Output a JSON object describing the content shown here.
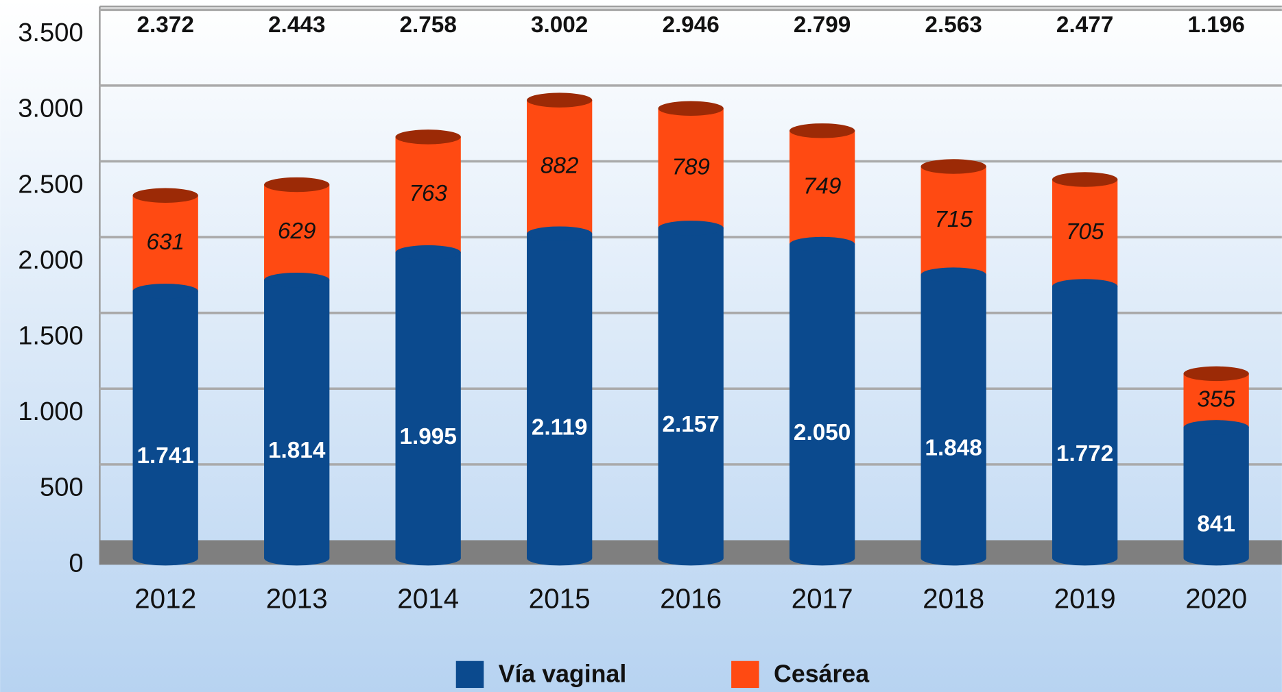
{
  "chart_data": {
    "type": "bar",
    "stacked": true,
    "categories": [
      "2012",
      "2013",
      "2014",
      "2015",
      "2016",
      "2017",
      "2018",
      "2019",
      "2020"
    ],
    "series": [
      {
        "name": "Vía vaginal",
        "color": "#0b4a8e",
        "values": [
          1741,
          1814,
          1995,
          2119,
          2157,
          2050,
          1848,
          1772,
          841
        ],
        "value_labels": [
          "1.741",
          "1.814",
          "1.995",
          "2.119",
          "2.157",
          "2.050",
          "1.848",
          "1.772",
          "841"
        ]
      },
      {
        "name": "Cesárea",
        "color": "#ff4a12",
        "values": [
          631,
          629,
          763,
          882,
          789,
          749,
          715,
          705,
          355
        ],
        "value_labels": [
          "631",
          "629",
          "763",
          "882",
          "789",
          "749",
          "715",
          "705",
          "355"
        ]
      }
    ],
    "totals": {
      "values": [
        2372,
        2443,
        2758,
        3002,
        2946,
        2799,
        2563,
        2477,
        1196
      ],
      "value_labels": [
        "2.372",
        "2.443",
        "2.758",
        "3.002",
        "2.946",
        "2.799",
        "2.563",
        "2.477",
        "1.196"
      ]
    },
    "ylim": [
      0,
      3500
    ],
    "yticks": [
      0,
      500,
      {
        "value": 1000,
        "label": "1.000"
      },
      {
        "value": 1500,
        "label": "1.500"
      },
      {
        "value": 2000,
        "label": "2.000"
      },
      {
        "value": 2500,
        "label": "2.500"
      },
      {
        "value": 3000,
        "label": "3.000"
      },
      {
        "value": 3500,
        "label": "3.500"
      }
    ],
    "grid": true,
    "legend": "bottom"
  }
}
